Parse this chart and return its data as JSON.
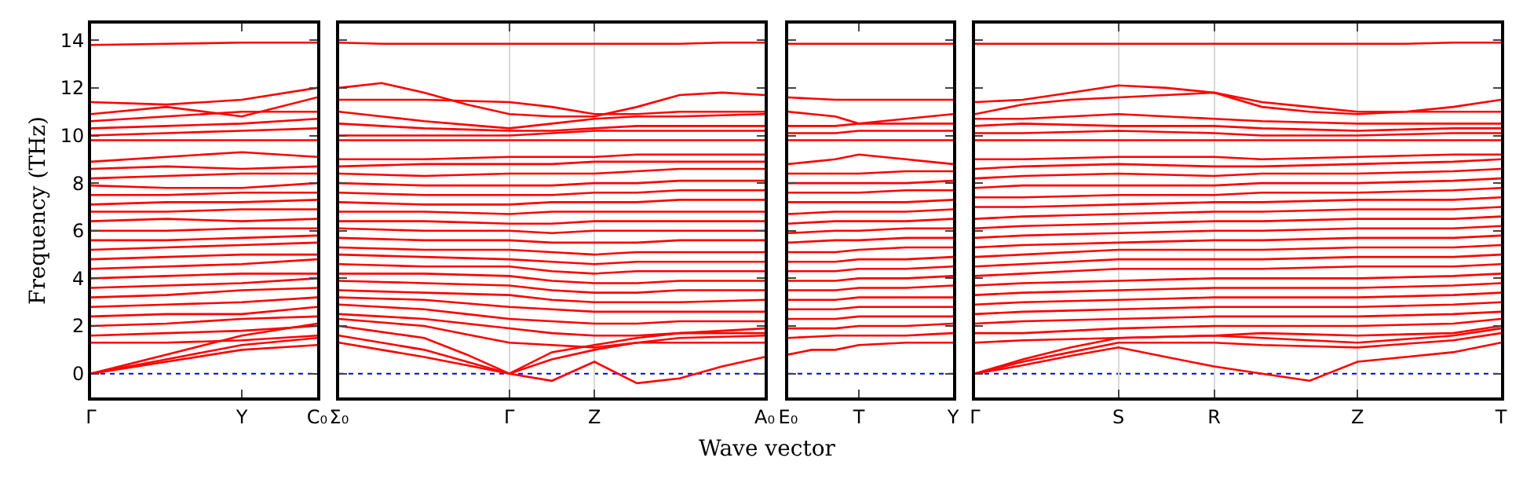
{
  "chart_data": [
    {
      "type": "line",
      "ylabel": "Frequency (THz)",
      "categories": [
        "Γ",
        null,
        "Y",
        "C₀"
      ],
      "ylim": [
        -1,
        14.7
      ],
      "yticks": [
        0,
        2,
        4,
        6,
        8,
        10,
        12,
        14
      ],
      "ref_lines": [
        {
          "axis": "y",
          "value": 0,
          "color": "#0000ff",
          "line_style": "dotted"
        }
      ],
      "series": [
        {
          "color": "#ff0000",
          "values": [
            0,
            0.8,
            1.6,
            2.1
          ]
        },
        {
          "color": "#ff0000",
          "values": [
            0,
            0.6,
            1.2,
            1.5
          ]
        },
        {
          "color": "#ff0000",
          "values": [
            0,
            0.5,
            1.0,
            1.2
          ]
        },
        {
          "color": "#ff0000",
          "values": [
            1.3,
            1.3,
            1.4,
            1.6
          ]
        },
        {
          "color": "#ff0000",
          "values": [
            1.6,
            1.7,
            1.8,
            2.0
          ]
        },
        {
          "color": "#ff0000",
          "values": [
            2.0,
            2.1,
            2.3,
            2.4
          ]
        },
        {
          "color": "#ff0000",
          "values": [
            2.4,
            2.5,
            2.5,
            2.8
          ]
        },
        {
          "color": "#ff0000",
          "values": [
            2.8,
            2.9,
            3.0,
            3.2
          ]
        },
        {
          "color": "#ff0000",
          "values": [
            3.2,
            3.3,
            3.5,
            3.6
          ]
        },
        {
          "color": "#ff0000",
          "values": [
            3.6,
            3.7,
            3.8,
            4.0
          ]
        },
        {
          "color": "#ff0000",
          "values": [
            4.0,
            4.1,
            4.2,
            4.2
          ]
        },
        {
          "color": "#ff0000",
          "values": [
            4.4,
            4.5,
            4.6,
            4.8
          ]
        },
        {
          "color": "#ff0000",
          "values": [
            4.8,
            4.9,
            5.0,
            5.0
          ]
        },
        {
          "color": "#ff0000",
          "values": [
            5.2,
            5.3,
            5.4,
            5.5
          ]
        },
        {
          "color": "#ff0000",
          "values": [
            5.6,
            5.6,
            5.7,
            5.8
          ]
        },
        {
          "color": "#ff0000",
          "values": [
            6.0,
            6.0,
            6.1,
            6.1
          ]
        },
        {
          "color": "#ff0000",
          "values": [
            6.4,
            6.5,
            6.4,
            6.5
          ]
        },
        {
          "color": "#ff0000",
          "values": [
            6.8,
            6.8,
            6.9,
            6.9
          ]
        },
        {
          "color": "#ff0000",
          "values": [
            7.1,
            7.2,
            7.2,
            7.3
          ]
        },
        {
          "color": "#ff0000",
          "values": [
            7.5,
            7.5,
            7.6,
            7.6
          ]
        },
        {
          "color": "#ff0000",
          "values": [
            7.9,
            7.8,
            7.8,
            8.0
          ]
        },
        {
          "color": "#ff0000",
          "values": [
            8.2,
            8.3,
            8.4,
            8.4
          ]
        },
        {
          "color": "#ff0000",
          "values": [
            8.6,
            8.7,
            8.6,
            8.7
          ]
        },
        {
          "color": "#ff0000",
          "values": [
            8.9,
            9.1,
            9.3,
            9.1
          ]
        },
        {
          "color": "#ff0000",
          "values": [
            9.8,
            9.8,
            9.8,
            9.8
          ]
        },
        {
          "color": "#ff0000",
          "values": [
            10.0,
            10.1,
            10.2,
            10.3
          ]
        },
        {
          "color": "#ff0000",
          "values": [
            10.3,
            10.4,
            10.5,
            10.7
          ]
        },
        {
          "color": "#ff0000",
          "values": [
            10.6,
            10.8,
            11.0,
            11.0
          ]
        },
        {
          "color": "#ff0000",
          "values": [
            10.9,
            11.2,
            10.8,
            11.6
          ]
        },
        {
          "color": "#ff0000",
          "values": [
            11.4,
            11.3,
            11.5,
            12.0
          ]
        },
        {
          "color": "#ff0000",
          "values": [
            13.8,
            13.85,
            13.9,
            13.9
          ]
        }
      ]
    },
    {
      "type": "line",
      "xlabel": "Wave vector",
      "grid": "x",
      "tick_labels": "x",
      "categories": [
        "Σ₀",
        null,
        null,
        null,
        "Γ",
        null,
        "Z",
        null,
        null,
        null,
        "A₀"
      ],
      "ylim": [
        -1,
        14.7
      ],
      "yticks": [
        0,
        2,
        4,
        6,
        8,
        10,
        12,
        14
      ],
      "ref_lines": [
        {
          "axis": "y",
          "value": 0,
          "color": "#0000ff",
          "line_style": "dotted"
        }
      ],
      "series": [
        {
          "color": "#ff0000",
          "values": [
            1.3,
            1.0,
            0.7,
            0.35,
            0,
            -0.3,
            0.5,
            -0.4,
            -0.2,
            0.3,
            0.7
          ]
        },
        {
          "color": "#ff0000",
          "values": [
            1.6,
            1.3,
            1.0,
            0.5,
            0,
            0.6,
            1.0,
            1.3,
            1.5,
            1.55,
            1.6
          ]
        },
        {
          "color": "#ff0000",
          "values": [
            2.0,
            1.75,
            1.5,
            0.8,
            0,
            0.9,
            1.2,
            1.5,
            1.7,
            1.8,
            1.9
          ]
        },
        {
          "color": "#ff0000",
          "values": [
            2.3,
            2.15,
            2.0,
            1.65,
            1.3,
            1.2,
            1.1,
            1.3,
            1.3,
            1.3,
            1.3
          ]
        },
        {
          "color": "#ff0000",
          "values": [
            2.5,
            2.4,
            2.3,
            2.1,
            1.9,
            1.7,
            1.6,
            1.6,
            1.7,
            1.7,
            1.7
          ]
        },
        {
          "color": "#ff0000",
          "values": [
            2.9,
            2.8,
            2.7,
            2.5,
            2.3,
            2.2,
            2.1,
            2.1,
            2.2,
            2.2,
            2.2
          ]
        },
        {
          "color": "#ff0000",
          "values": [
            3.2,
            3.15,
            3.1,
            2.95,
            2.8,
            2.7,
            2.6,
            2.6,
            2.6,
            2.6,
            2.6
          ]
        },
        {
          "color": "#ff0000",
          "values": [
            3.5,
            3.45,
            3.4,
            3.35,
            3.3,
            3.1,
            3.0,
            3.0,
            3.0,
            3.05,
            3.1
          ]
        },
        {
          "color": "#ff0000",
          "values": [
            3.9,
            3.85,
            3.8,
            3.75,
            3.7,
            3.5,
            3.4,
            3.4,
            3.5,
            3.5,
            3.5
          ]
        },
        {
          "color": "#ff0000",
          "values": [
            4.2,
            4.2,
            4.2,
            4.15,
            4.1,
            3.9,
            3.8,
            3.8,
            3.9,
            3.9,
            3.9
          ]
        },
        {
          "color": "#ff0000",
          "values": [
            4.6,
            4.55,
            4.5,
            4.5,
            4.5,
            4.3,
            4.2,
            4.3,
            4.3,
            4.3,
            4.3
          ]
        },
        {
          "color": "#ff0000",
          "values": [
            5.0,
            4.95,
            4.9,
            4.85,
            4.8,
            4.7,
            4.6,
            4.7,
            4.7,
            4.7,
            4.7
          ]
        },
        {
          "color": "#ff0000",
          "values": [
            5.3,
            5.25,
            5.2,
            5.2,
            5.2,
            5.1,
            5.0,
            5.1,
            5.1,
            5.1,
            5.1
          ]
        },
        {
          "color": "#ff0000",
          "values": [
            5.7,
            5.65,
            5.6,
            5.6,
            5.6,
            5.5,
            5.5,
            5.5,
            5.6,
            5.6,
            5.6
          ]
        },
        {
          "color": "#ff0000",
          "values": [
            6.1,
            6.05,
            6.0,
            6.0,
            6.0,
            5.9,
            6.0,
            6.0,
            6.0,
            6.0,
            6.0
          ]
        },
        {
          "color": "#ff0000",
          "values": [
            6.4,
            6.4,
            6.4,
            6.35,
            6.3,
            6.3,
            6.4,
            6.4,
            6.4,
            6.4,
            6.4
          ]
        },
        {
          "color": "#ff0000",
          "values": [
            6.8,
            6.8,
            6.8,
            6.75,
            6.7,
            6.8,
            6.8,
            6.8,
            6.8,
            6.8,
            6.8
          ]
        },
        {
          "color": "#ff0000",
          "values": [
            7.2,
            7.15,
            7.1,
            7.1,
            7.1,
            7.2,
            7.2,
            7.2,
            7.3,
            7.3,
            7.3
          ]
        },
        {
          "color": "#ff0000",
          "values": [
            7.6,
            7.55,
            7.5,
            7.5,
            7.5,
            7.5,
            7.6,
            7.6,
            7.7,
            7.7,
            7.7
          ]
        },
        {
          "color": "#ff0000",
          "values": [
            8.0,
            7.95,
            7.9,
            7.9,
            7.9,
            7.9,
            8.0,
            8.0,
            8.1,
            8.1,
            8.1
          ]
        },
        {
          "color": "#ff0000",
          "values": [
            8.4,
            8.35,
            8.3,
            8.35,
            8.4,
            8.4,
            8.4,
            8.5,
            8.6,
            8.6,
            8.6
          ]
        },
        {
          "color": "#ff0000",
          "values": [
            8.7,
            8.75,
            8.8,
            8.8,
            8.8,
            8.8,
            8.9,
            8.9,
            8.9,
            8.9,
            8.9
          ]
        },
        {
          "color": "#ff0000",
          "values": [
            9.0,
            9.0,
            9.0,
            9.05,
            9.1,
            9.1,
            9.1,
            9.2,
            9.2,
            9.2,
            9.2
          ]
        },
        {
          "color": "#ff0000",
          "values": [
            9.8,
            9.8,
            9.8,
            9.8,
            9.8,
            9.8,
            9.8,
            9.8,
            9.8,
            9.8,
            9.8
          ]
        },
        {
          "color": "#ff0000",
          "values": [
            10.0,
            10.0,
            10.0,
            10.0,
            10.0,
            10.1,
            10.2,
            10.2,
            10.2,
            10.2,
            10.2
          ]
        },
        {
          "color": "#ff0000",
          "values": [
            10.5,
            10.4,
            10.3,
            10.25,
            10.2,
            10.2,
            10.3,
            10.4,
            10.4,
            10.4,
            10.4
          ]
        },
        {
          "color": "#ff0000",
          "values": [
            11.0,
            10.8,
            10.6,
            10.45,
            10.3,
            10.5,
            10.7,
            10.8,
            10.8,
            10.85,
            10.9
          ]
        },
        {
          "color": "#ff0000",
          "values": [
            11.5,
            11.5,
            11.5,
            11.45,
            11.4,
            11.2,
            10.9,
            10.9,
            11.0,
            11.0,
            11.0
          ]
        },
        {
          "color": "#ff0000",
          "values": [
            12.0,
            12.2,
            11.8,
            11.3,
            10.9,
            10.8,
            10.8,
            11.2,
            11.7,
            11.8,
            11.7
          ]
        },
        {
          "color": "#ff0000",
          "values": [
            13.9,
            13.85,
            13.85,
            13.85,
            13.85,
            13.85,
            13.85,
            13.85,
            13.85,
            13.9,
            13.9
          ]
        }
      ]
    },
    {
      "type": "line",
      "tick_labels": "x",
      "categories": [
        "E₀",
        null,
        null,
        "T",
        null,
        null,
        null,
        "Y"
      ],
      "ylim": [
        -1,
        14.7
      ],
      "yticks": [
        0,
        2,
        4,
        6,
        8,
        10,
        12,
        14
      ],
      "ref_lines": [
        {
          "axis": "y",
          "value": 0,
          "color": "#0000ff",
          "line_style": "dotted"
        }
      ],
      "series": [
        {
          "color": "#ff0000",
          "values": [
            0.8,
            1.0,
            1.0,
            1.2,
            1.25,
            1.3,
            1.3,
            1.3
          ]
        },
        {
          "color": "#ff0000",
          "values": [
            1.5,
            1.55,
            1.6,
            1.6,
            1.6,
            1.6,
            1.65,
            1.7
          ]
        },
        {
          "color": "#ff0000",
          "values": [
            1.9,
            1.9,
            1.9,
            2.0,
            2.0,
            2.0,
            2.05,
            2.1
          ]
        },
        {
          "color": "#ff0000",
          "values": [
            2.3,
            2.3,
            2.3,
            2.4,
            2.4,
            2.4,
            2.4,
            2.4
          ]
        },
        {
          "color": "#ff0000",
          "values": [
            2.7,
            2.7,
            2.7,
            2.8,
            2.8,
            2.8,
            2.8,
            2.8
          ]
        },
        {
          "color": "#ff0000",
          "values": [
            3.1,
            3.1,
            3.1,
            3.2,
            3.2,
            3.2,
            3.2,
            3.2
          ]
        },
        {
          "color": "#ff0000",
          "values": [
            3.5,
            3.5,
            3.5,
            3.6,
            3.6,
            3.6,
            3.65,
            3.7
          ]
        },
        {
          "color": "#ff0000",
          "values": [
            3.9,
            3.9,
            3.9,
            4.0,
            4.0,
            4.0,
            4.05,
            4.1
          ]
        },
        {
          "color": "#ff0000",
          "values": [
            4.3,
            4.3,
            4.3,
            4.4,
            4.4,
            4.4,
            4.45,
            4.5
          ]
        },
        {
          "color": "#ff0000",
          "values": [
            4.7,
            4.7,
            4.7,
            4.8,
            4.8,
            4.8,
            4.85,
            4.9
          ]
        },
        {
          "color": "#ff0000",
          "values": [
            5.1,
            5.1,
            5.1,
            5.2,
            5.25,
            5.3,
            5.3,
            5.3
          ]
        },
        {
          "color": "#ff0000",
          "values": [
            5.5,
            5.55,
            5.6,
            5.6,
            5.65,
            5.7,
            5.7,
            5.7
          ]
        },
        {
          "color": "#ff0000",
          "values": [
            5.9,
            5.95,
            6.0,
            6.0,
            6.05,
            6.1,
            6.1,
            6.1
          ]
        },
        {
          "color": "#ff0000",
          "values": [
            6.3,
            6.35,
            6.4,
            6.4,
            6.4,
            6.4,
            6.45,
            6.5
          ]
        },
        {
          "color": "#ff0000",
          "values": [
            6.7,
            6.75,
            6.8,
            6.8,
            6.8,
            6.8,
            6.85,
            6.9
          ]
        },
        {
          "color": "#ff0000",
          "values": [
            7.2,
            7.2,
            7.2,
            7.2,
            7.2,
            7.2,
            7.25,
            7.3
          ]
        },
        {
          "color": "#ff0000",
          "values": [
            7.6,
            7.6,
            7.6,
            7.6,
            7.65,
            7.7,
            7.7,
            7.7
          ]
        },
        {
          "color": "#ff0000",
          "values": [
            8.0,
            8.0,
            8.0,
            8.0,
            8.0,
            8.0,
            8.05,
            8.1
          ]
        },
        {
          "color": "#ff0000",
          "values": [
            8.4,
            8.4,
            8.4,
            8.4,
            8.45,
            8.5,
            8.5,
            8.5
          ]
        },
        {
          "color": "#ff0000",
          "values": [
            8.8,
            8.9,
            9.0,
            9.2,
            9.1,
            9.0,
            8.9,
            8.8
          ]
        },
        {
          "color": "#ff0000",
          "values": [
            9.8,
            9.8,
            9.8,
            9.8,
            9.8,
            9.8,
            9.8,
            9.8
          ]
        },
        {
          "color": "#ff0000",
          "values": [
            10.1,
            10.1,
            10.1,
            10.2,
            10.2,
            10.2,
            10.2,
            10.2
          ]
        },
        {
          "color": "#ff0000",
          "values": [
            10.4,
            10.4,
            10.4,
            10.5,
            10.5,
            10.5,
            10.5,
            10.5
          ]
        },
        {
          "color": "#ff0000",
          "values": [
            11.0,
            10.9,
            10.8,
            10.5,
            10.6,
            10.7,
            10.8,
            10.9
          ]
        },
        {
          "color": "#ff0000",
          "values": [
            11.6,
            11.55,
            11.5,
            11.5,
            11.5,
            11.5,
            11.5,
            11.5
          ]
        },
        {
          "color": "#ff0000",
          "values": [
            13.85,
            13.85,
            13.85,
            13.85,
            13.85,
            13.85,
            13.85,
            13.85
          ]
        }
      ]
    },
    {
      "type": "line",
      "grid": "x",
      "tick_labels": "x",
      "categories": [
        "Γ",
        null,
        null,
        "S",
        null,
        "R",
        null,
        null,
        "Z",
        null,
        null,
        "T"
      ],
      "ylim": [
        -1,
        14.7
      ],
      "yticks": [
        0,
        2,
        4,
        6,
        8,
        10,
        12,
        14
      ],
      "ref_lines": [
        {
          "axis": "y",
          "value": 0,
          "color": "#0000ff",
          "line_style": "dotted"
        }
      ],
      "series": [
        {
          "color": "#ff0000",
          "values": [
            0,
            0.35,
            0.75,
            1.1,
            0.7,
            0.3,
            0,
            -0.3,
            0.5,
            0.7,
            0.9,
            1.3
          ]
        },
        {
          "color": "#ff0000",
          "values": [
            0,
            0.5,
            0.9,
            1.3,
            1.3,
            1.3,
            1.2,
            1.15,
            1.1,
            1.25,
            1.4,
            1.7
          ]
        },
        {
          "color": "#ff0000",
          "values": [
            0,
            0.6,
            1.1,
            1.5,
            1.55,
            1.6,
            1.5,
            1.4,
            1.3,
            1.45,
            1.6,
            1.9
          ]
        },
        {
          "color": "#ff0000",
          "values": [
            1.3,
            1.4,
            1.45,
            1.5,
            1.55,
            1.6,
            1.7,
            1.65,
            1.6,
            1.65,
            1.7,
            2.0
          ]
        },
        {
          "color": "#ff0000",
          "values": [
            1.7,
            1.7,
            1.8,
            1.9,
            1.95,
            2.0,
            2.0,
            2.0,
            2.0,
            2.05,
            2.1,
            2.3
          ]
        },
        {
          "color": "#ff0000",
          "values": [
            2.1,
            2.2,
            2.25,
            2.3,
            2.35,
            2.4,
            2.4,
            2.4,
            2.4,
            2.45,
            2.5,
            2.6
          ]
        },
        {
          "color": "#ff0000",
          "values": [
            2.5,
            2.6,
            2.65,
            2.7,
            2.75,
            2.8,
            2.8,
            2.8,
            2.8,
            2.85,
            2.9,
            3.0
          ]
        },
        {
          "color": "#ff0000",
          "values": [
            2.9,
            3.0,
            3.05,
            3.1,
            3.15,
            3.2,
            3.2,
            3.2,
            3.2,
            3.25,
            3.3,
            3.4
          ]
        },
        {
          "color": "#ff0000",
          "values": [
            3.3,
            3.4,
            3.45,
            3.5,
            3.55,
            3.6,
            3.6,
            3.6,
            3.6,
            3.65,
            3.7,
            3.8
          ]
        },
        {
          "color": "#ff0000",
          "values": [
            3.7,
            3.8,
            3.85,
            3.9,
            3.95,
            4.0,
            4.0,
            4.0,
            4.0,
            4.05,
            4.1,
            4.2
          ]
        },
        {
          "color": "#ff0000",
          "values": [
            4.1,
            4.2,
            4.3,
            4.4,
            4.4,
            4.4,
            4.4,
            4.45,
            4.5,
            4.5,
            4.5,
            4.6
          ]
        },
        {
          "color": "#ff0000",
          "values": [
            4.5,
            4.6,
            4.7,
            4.8,
            4.8,
            4.8,
            4.8,
            4.85,
            4.9,
            4.9,
            4.9,
            5.0
          ]
        },
        {
          "color": "#ff0000",
          "values": [
            4.9,
            5.0,
            5.1,
            5.2,
            5.2,
            5.2,
            5.2,
            5.25,
            5.3,
            5.3,
            5.3,
            5.4
          ]
        },
        {
          "color": "#ff0000",
          "values": [
            5.3,
            5.4,
            5.45,
            5.5,
            5.55,
            5.6,
            5.6,
            5.65,
            5.7,
            5.7,
            5.7,
            5.8
          ]
        },
        {
          "color": "#ff0000",
          "values": [
            5.7,
            5.8,
            5.85,
            5.9,
            5.95,
            6.0,
            6.0,
            6.05,
            6.1,
            6.1,
            6.1,
            6.2
          ]
        },
        {
          "color": "#ff0000",
          "values": [
            6.1,
            6.2,
            6.25,
            6.3,
            6.35,
            6.4,
            6.4,
            6.45,
            6.5,
            6.5,
            6.5,
            6.6
          ]
        },
        {
          "color": "#ff0000",
          "values": [
            6.5,
            6.6,
            6.65,
            6.7,
            6.75,
            6.8,
            6.8,
            6.85,
            6.9,
            6.9,
            6.9,
            7.0
          ]
        },
        {
          "color": "#ff0000",
          "values": [
            7.0,
            7.0,
            7.05,
            7.1,
            7.15,
            7.2,
            7.2,
            7.25,
            7.3,
            7.3,
            7.3,
            7.4
          ]
        },
        {
          "color": "#ff0000",
          "values": [
            7.4,
            7.4,
            7.45,
            7.5,
            7.5,
            7.5,
            7.6,
            7.6,
            7.6,
            7.65,
            7.7,
            7.8
          ]
        },
        {
          "color": "#ff0000",
          "values": [
            7.8,
            7.9,
            7.9,
            7.9,
            7.9,
            7.9,
            8.0,
            8.0,
            8.0,
            8.05,
            8.1,
            8.2
          ]
        },
        {
          "color": "#ff0000",
          "values": [
            8.2,
            8.3,
            8.35,
            8.4,
            8.35,
            8.3,
            8.4,
            8.4,
            8.4,
            8.45,
            8.5,
            8.6
          ]
        },
        {
          "color": "#ff0000",
          "values": [
            8.6,
            8.7,
            8.75,
            8.8,
            8.75,
            8.7,
            8.7,
            8.75,
            8.8,
            8.85,
            8.9,
            9.0
          ]
        },
        {
          "color": "#ff0000",
          "values": [
            9.0,
            9.0,
            9.05,
            9.1,
            9.1,
            9.1,
            9.0,
            9.05,
            9.1,
            9.15,
            9.2,
            9.2
          ]
        },
        {
          "color": "#ff0000",
          "values": [
            9.8,
            9.8,
            9.8,
            9.8,
            9.8,
            9.8,
            9.8,
            9.8,
            9.8,
            9.8,
            9.8,
            9.8
          ]
        },
        {
          "color": "#ff0000",
          "values": [
            10.1,
            10.1,
            10.15,
            10.2,
            10.15,
            10.1,
            10.0,
            10.0,
            10.0,
            10.05,
            10.1,
            10.1
          ]
        },
        {
          "color": "#ff0000",
          "values": [
            10.4,
            10.5,
            10.45,
            10.4,
            10.4,
            10.4,
            10.3,
            10.25,
            10.2,
            10.25,
            10.3,
            10.3
          ]
        },
        {
          "color": "#ff0000",
          "values": [
            10.7,
            10.7,
            10.8,
            10.9,
            10.8,
            10.7,
            10.6,
            10.55,
            10.5,
            10.5,
            10.5,
            10.5
          ]
        },
        {
          "color": "#ff0000",
          "values": [
            10.9,
            11.3,
            11.5,
            11.6,
            11.7,
            11.8,
            11.4,
            11.2,
            11.0,
            11.0,
            11.0,
            11.0
          ]
        },
        {
          "color": "#ff0000",
          "values": [
            11.4,
            11.5,
            11.8,
            12.1,
            12.0,
            11.8,
            11.2,
            11.0,
            10.9,
            11.0,
            11.2,
            11.5
          ]
        },
        {
          "color": "#ff0000",
          "values": [
            13.85,
            13.85,
            13.85,
            13.85,
            13.85,
            13.85,
            13.85,
            13.85,
            13.85,
            13.85,
            13.9,
            13.9
          ]
        }
      ]
    }
  ]
}
